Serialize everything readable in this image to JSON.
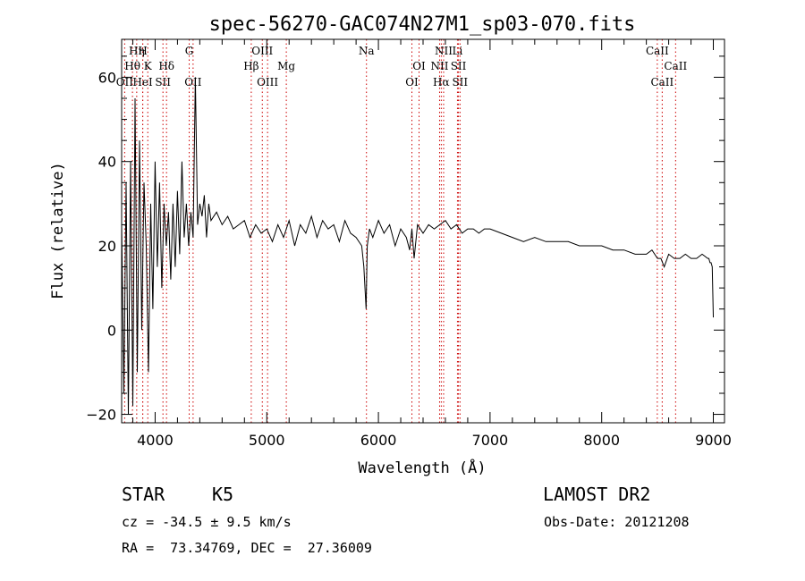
{
  "chart_data": {
    "type": "line",
    "title": "spec-56270-GAC074N27M1_sp03-070.fits",
    "xlabel": "Wavelength (Å)",
    "ylabel": "Flux (relative)",
    "xlim": [
      3700,
      9100
    ],
    "ylim": [
      -22,
      69
    ],
    "x_ticks": [
      4000,
      5000,
      6000,
      7000,
      8000,
      9000
    ],
    "y_ticks": [
      -20,
      0,
      20,
      40,
      60
    ],
    "grid": false,
    "legend": "none",
    "series": [
      {
        "x": [
          3700,
          3720,
          3740,
          3760,
          3780,
          3800,
          3820,
          3840,
          3860,
          3880,
          3900,
          3920,
          3940,
          3960,
          3980,
          4000,
          4020,
          4040,
          4060,
          4080,
          4100,
          4120,
          4140,
          4160,
          4180,
          4200,
          4220,
          4240,
          4260,
          4280,
          4300,
          4320,
          4340,
          4360,
          4380,
          4400,
          4420,
          4440,
          4460,
          4480,
          4500,
          4550,
          4600,
          4650,
          4700,
          4750,
          4800,
          4850,
          4900,
          4950,
          5000,
          5050,
          5100,
          5150,
          5200,
          5250,
          5300,
          5350,
          5400,
          5450,
          5500,
          5550,
          5600,
          5650,
          5700,
          5750,
          5800,
          5850,
          5870,
          5890,
          5900,
          5920,
          5950,
          6000,
          6050,
          6100,
          6150,
          6200,
          6250,
          6280,
          6300,
          6320,
          6350,
          6400,
          6450,
          6500,
          6550,
          6600,
          6650,
          6700,
          6750,
          6800,
          6850,
          6900,
          6950,
          7000,
          7100,
          7200,
          7300,
          7400,
          7500,
          7600,
          7700,
          7800,
          7900,
          8000,
          8100,
          8200,
          8300,
          8400,
          8450,
          8500,
          8530,
          8560,
          8600,
          8650,
          8700,
          8750,
          8800,
          8850,
          8900,
          8950,
          8960,
          8970,
          8980,
          8990,
          9000
        ],
        "y": [
          25,
          -15,
          35,
          -20,
          40,
          -18,
          55,
          -10,
          45,
          0,
          35,
          20,
          -10,
          30,
          5,
          40,
          15,
          35,
          10,
          30,
          20,
          28,
          12,
          30,
          15,
          33,
          18,
          40,
          22,
          30,
          20,
          28,
          22,
          60,
          25,
          30,
          27,
          32,
          22,
          30,
          26,
          28,
          25,
          27,
          24,
          25,
          26,
          22,
          25,
          23,
          24,
          21,
          25,
          22,
          26,
          20,
          25,
          23,
          27,
          22,
          26,
          24,
          25,
          21,
          26,
          23,
          22,
          20,
          15,
          5,
          20,
          24,
          22,
          26,
          23,
          25,
          20,
          24,
          22,
          19,
          24,
          17,
          25,
          23,
          25,
          24,
          25,
          26,
          24,
          25,
          23,
          24,
          24,
          23,
          24,
          24,
          23,
          22,
          21,
          22,
          21,
          21,
          21,
          20,
          20,
          20,
          19,
          19,
          18,
          18,
          19,
          17,
          17,
          15,
          18,
          17,
          17,
          18,
          17,
          17,
          18,
          17,
          17,
          16,
          16,
          15,
          3
        ]
      }
    ],
    "line_markers": [
      {
        "label": "Hη",
        "x": 3835,
        "row": 0
      },
      {
        "label": "H",
        "x": 3889,
        "row": 0
      },
      {
        "label": "Hθ",
        "x": 3797,
        "row": 1
      },
      {
        "label": "K",
        "x": 3934,
        "row": 1
      },
      {
        "label": "Hδ",
        "x": 4102,
        "row": 1
      },
      {
        "label": "OII",
        "x": 3727,
        "row": 2
      },
      {
        "label": "HeI",
        "x": 3889,
        "row": 2
      },
      {
        "label": "SII",
        "x": 4070,
        "row": 2
      },
      {
        "label": "G",
        "x": 4305,
        "row": 0
      },
      {
        "label": "OII",
        "x": 4340,
        "row": 2
      },
      {
        "label": "OIII",
        "x": 4960,
        "row": 0
      },
      {
        "label": "Hβ",
        "x": 4861,
        "row": 1
      },
      {
        "label": "OIII",
        "x": 5007,
        "row": 2
      },
      {
        "label": "Mg",
        "x": 5175,
        "row": 1
      },
      {
        "label": "Na",
        "x": 5893,
        "row": 0
      },
      {
        "label": "NII",
        "x": 6584,
        "row": 0
      },
      {
        "label": "Li",
        "x": 6708,
        "row": 0
      },
      {
        "label": "OI",
        "x": 6364,
        "row": 1
      },
      {
        "label": "NII",
        "x": 6548,
        "row": 1
      },
      {
        "label": "SII",
        "x": 6717,
        "row": 1
      },
      {
        "label": "OI",
        "x": 6300,
        "row": 2
      },
      {
        "label": "Hα",
        "x": 6563,
        "row": 2
      },
      {
        "label": "SII",
        "x": 6731,
        "row": 2
      },
      {
        "label": "CaII",
        "x": 8498,
        "row": 0
      },
      {
        "label": "CaII",
        "x": 8662,
        "row": 1
      },
      {
        "label": "CaII",
        "x": 8542,
        "row": 2
      }
    ],
    "line_marker_color": "#cc0000"
  },
  "info": {
    "class": "STAR",
    "subclass": "K5",
    "survey": "LAMOST DR2",
    "cz": "cz = -34.5 ± 9.5 km/s",
    "obs_date": "Obs-Date: 20121208",
    "coords": "RA =  73.34769, DEC =  27.36009"
  }
}
